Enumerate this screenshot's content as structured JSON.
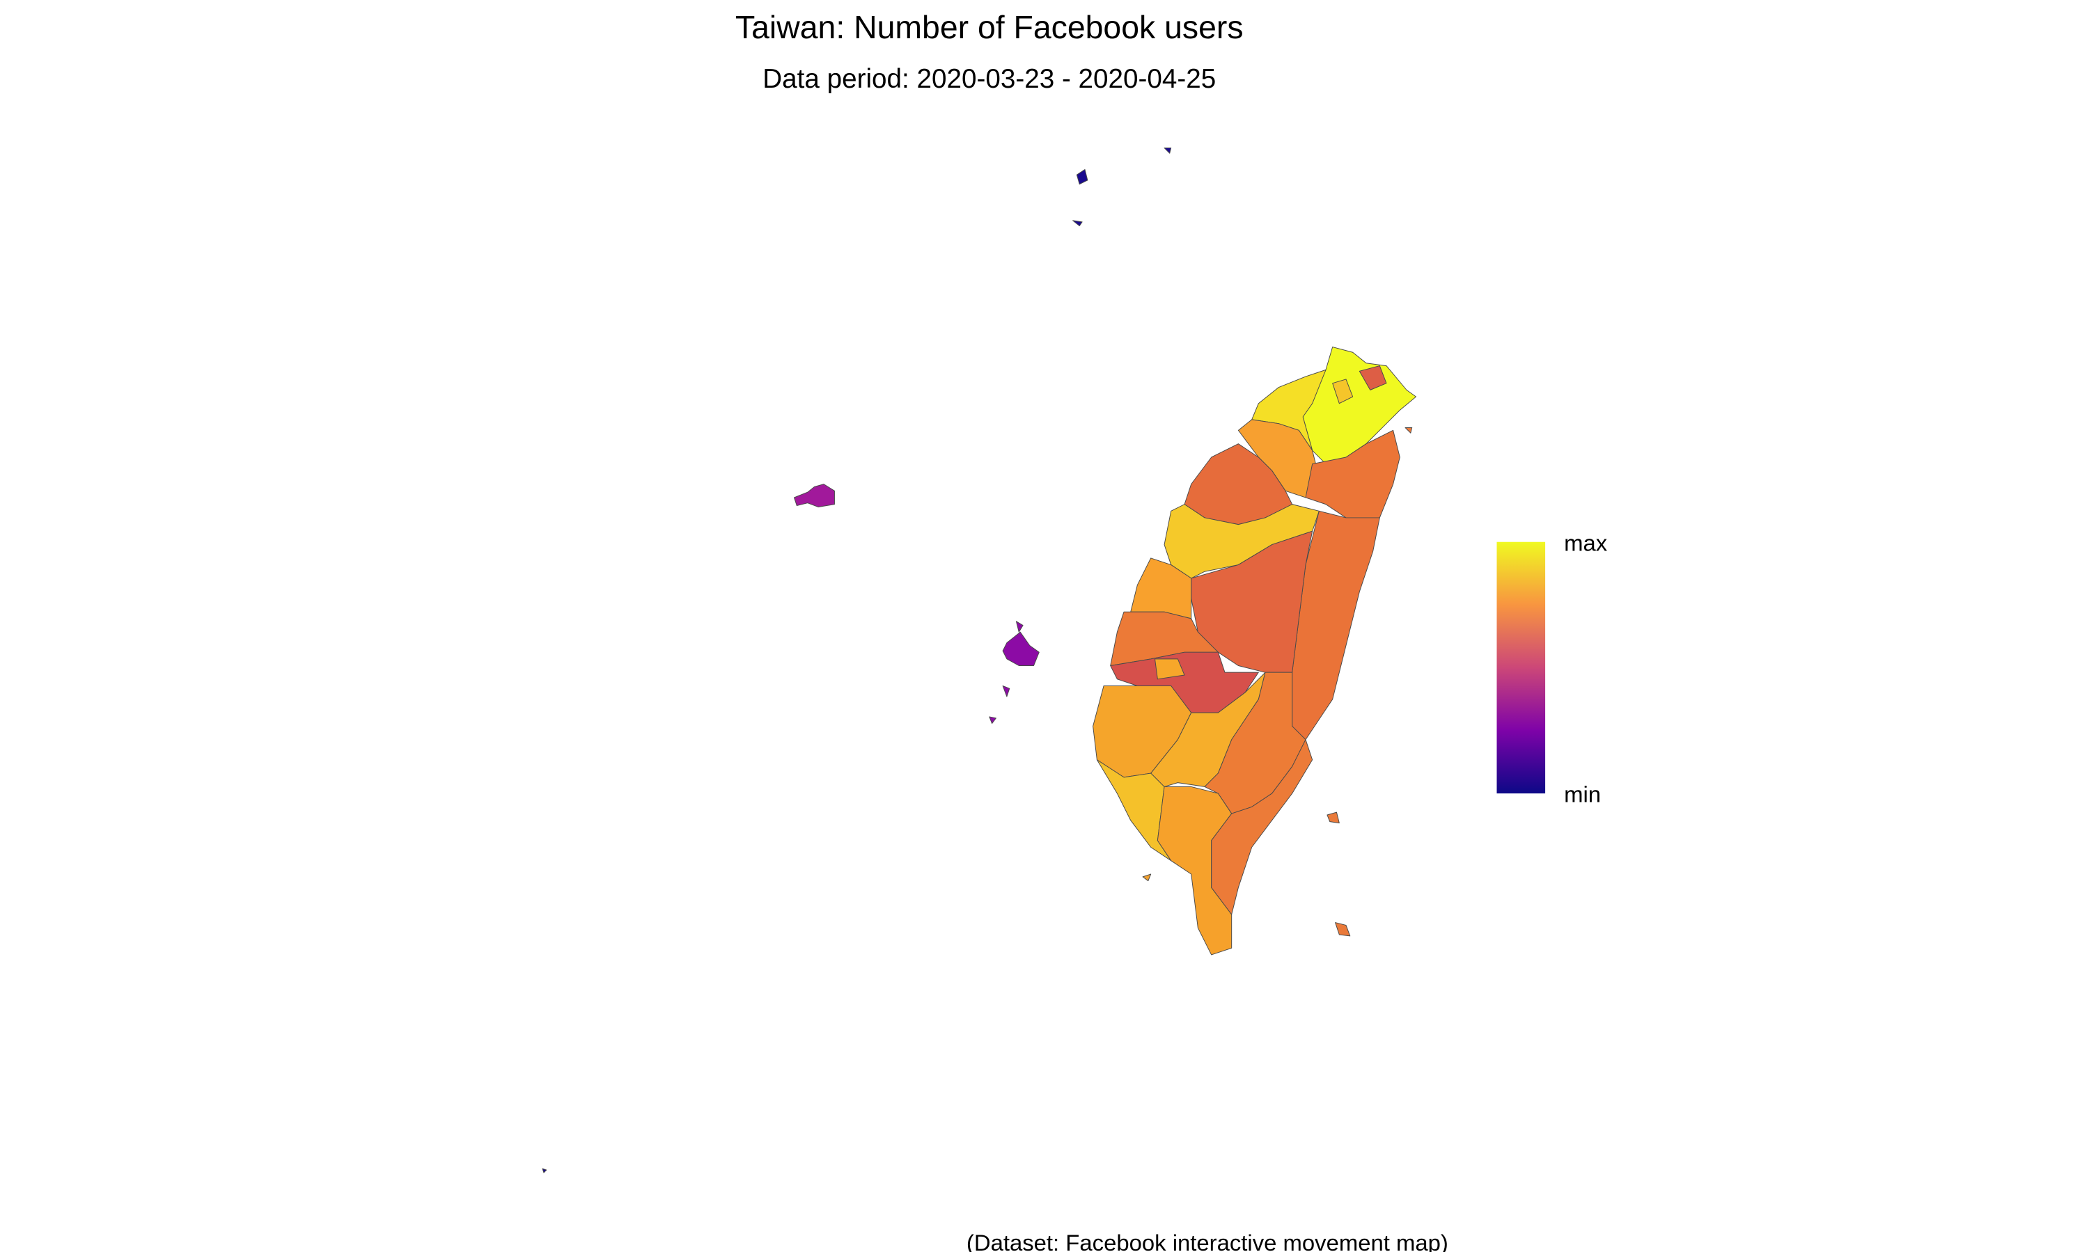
{
  "title": "Taiwan: Number of Facebook users",
  "subtitle": "Data period: 2020-03-23 - 2020-04-25",
  "legend": {
    "max": "max",
    "min": "min"
  },
  "caption": "(Dataset: Facebook interactive movement map)"
}
